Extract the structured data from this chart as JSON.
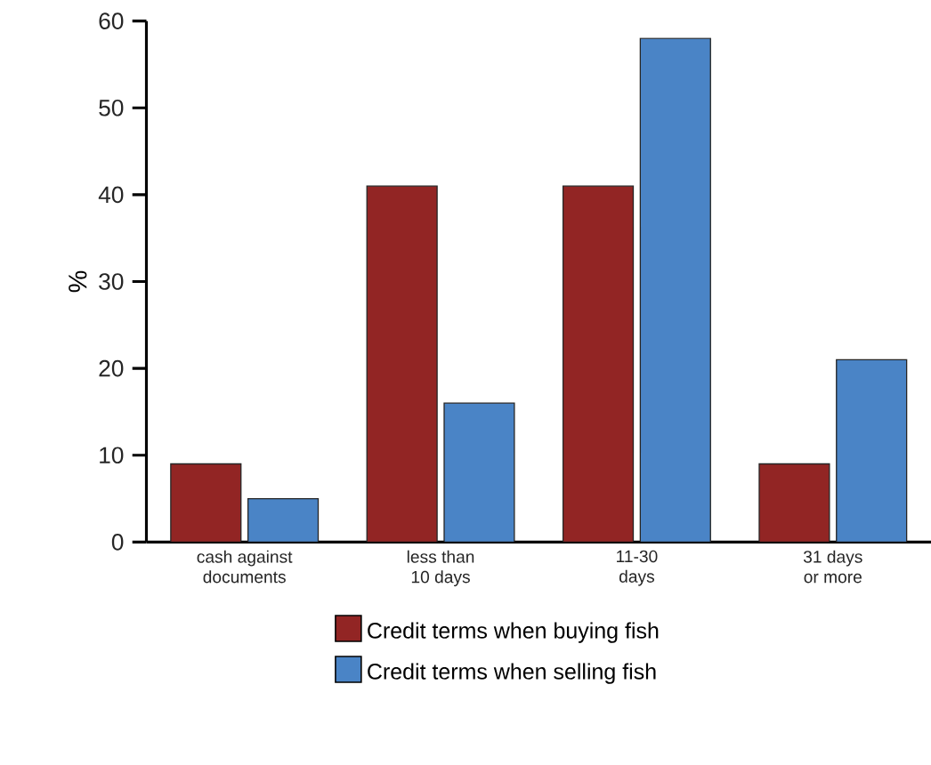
{
  "chart_data": {
    "type": "bar",
    "ylabel": "%",
    "categories": [
      "cash against\ndocuments",
      "less than\n10 days",
      "11-30\ndays",
      "31 days\nor more"
    ],
    "series": [
      {
        "name": "Credit terms when buying fish",
        "color": "#922524",
        "values": [
          9,
          41,
          41,
          9
        ]
      },
      {
        "name": "Credit terms when selling fish",
        "color": "#4a84c6",
        "values": [
          5,
          16,
          58,
          21
        ]
      }
    ],
    "ylim": [
      0,
      60
    ],
    "yticks": [
      0,
      10,
      20,
      30,
      40,
      50,
      60
    ],
    "grid": false,
    "legend": "bottom"
  }
}
